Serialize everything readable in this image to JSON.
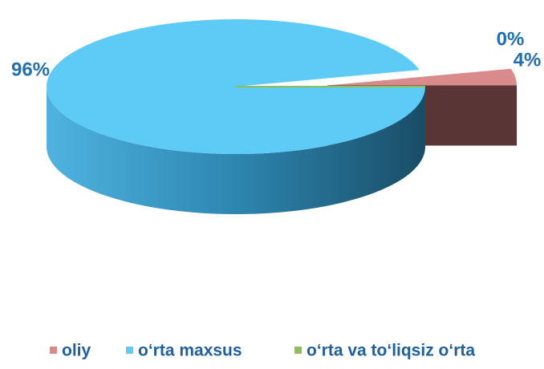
{
  "chart_data": {
    "type": "pie",
    "categories": [
      "oliy",
      "o‘rta maxsus",
      "o‘rta va to‘liqsiz o‘rta"
    ],
    "values": [
      4,
      96,
      0
    ],
    "value_labels": [
      "4%",
      "96%",
      "0%"
    ],
    "colors": [
      "#d98a8a",
      "#5ecbf7",
      "#8fbe54"
    ],
    "legend": "bottom"
  }
}
